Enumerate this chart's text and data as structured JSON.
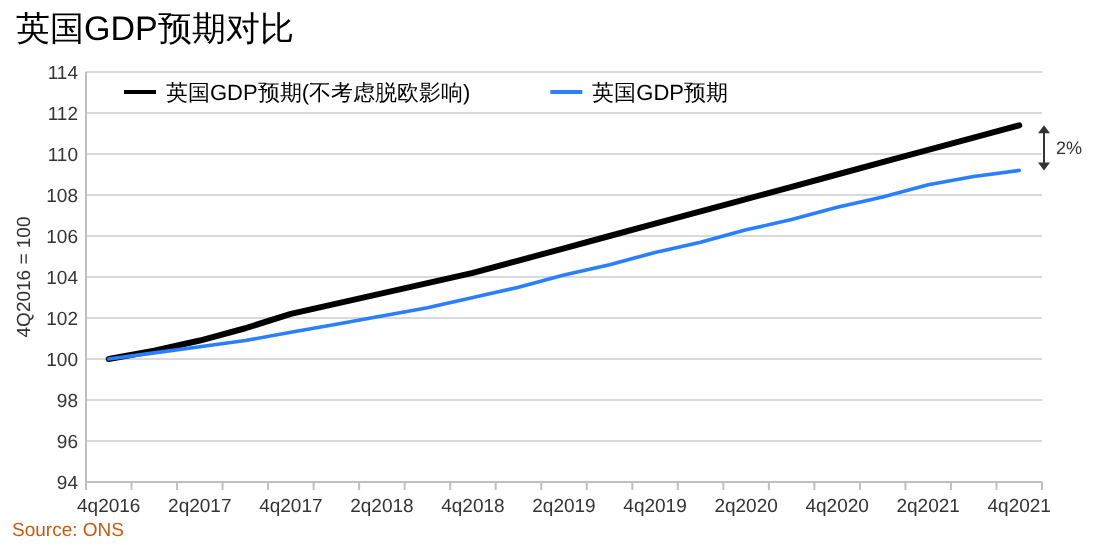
{
  "chart_data": {
    "type": "line",
    "title": "英国GDP预期对比",
    "ylabel": "4Q2016 = 100",
    "categories": [
      "4q2016",
      null,
      "2q2017",
      null,
      "4q2017",
      null,
      "2q2018",
      null,
      "4q2018",
      null,
      "2q2019",
      null,
      "4q2019",
      null,
      "2q2020",
      null,
      "4q2020",
      null,
      "2q2021",
      null,
      "4q2021"
    ],
    "series": [
      {
        "name": "英国GDP预期(不考虑脱欧影响)",
        "color": "#000000",
        "values": [
          100,
          100.4,
          100.9,
          101.5,
          102.2,
          102.7,
          103.2,
          103.7,
          104.2,
          104.8,
          105.4,
          106.0,
          106.6,
          107.2,
          107.8,
          108.4,
          109.0,
          109.6,
          110.2,
          110.8,
          111.4
        ]
      },
      {
        "name": "英国GDP预期",
        "color": "#2a7fff",
        "values": [
          100,
          100.3,
          100.6,
          100.9,
          101.3,
          101.7,
          102.1,
          102.5,
          103.0,
          103.5,
          104.1,
          104.6,
          105.2,
          105.7,
          106.3,
          106.8,
          107.4,
          107.9,
          108.5,
          108.9,
          109.2
        ]
      }
    ],
    "ylim": [
      94,
      114
    ],
    "yticks": [
      94,
      96,
      98,
      100,
      102,
      104,
      106,
      108,
      110,
      112,
      114
    ],
    "grid": "y",
    "legend": "top",
    "marker": "none",
    "line_style": "solid",
    "annotations": [
      "2%",
      "Source: ONS"
    ]
  }
}
